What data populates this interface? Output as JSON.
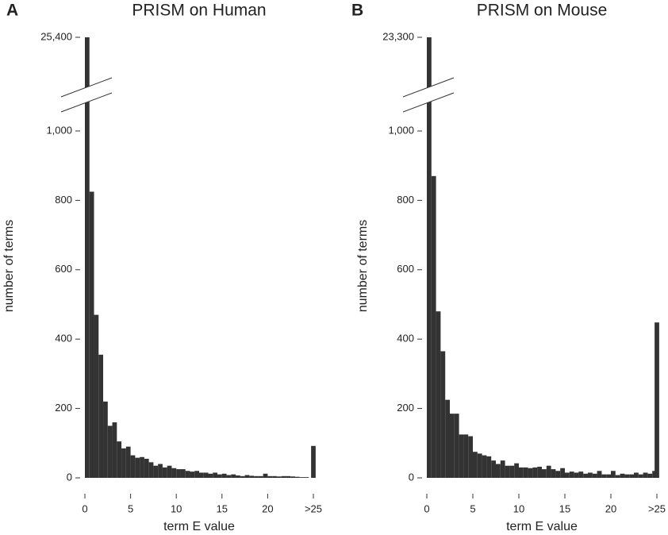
{
  "chart_data": [
    {
      "type": "histogram",
      "panel_label": "A",
      "title": "PRISM on Human",
      "x_label": "term E value",
      "y_label": "number of terms",
      "color": "#333333",
      "bins": [
        0,
        0.5,
        1,
        1.5,
        2,
        2.5,
        3,
        3.5,
        4,
        4.5,
        5,
        5.5,
        6,
        6.5,
        7,
        7.5,
        8,
        8.5,
        9,
        9.5,
        10,
        10.5,
        11,
        11.5,
        12,
        12.5,
        13,
        13.5,
        14,
        14.5,
        15,
        15.5,
        16,
        16.5,
        17,
        17.5,
        18,
        18.5,
        19,
        19.5,
        20,
        20.5,
        21,
        21.5,
        22,
        22.5,
        23,
        23.5,
        24,
        24.5,
        25
      ],
      "values": [
        25400,
        825,
        470,
        355,
        220,
        150,
        160,
        105,
        85,
        90,
        65,
        58,
        60,
        55,
        45,
        35,
        40,
        30,
        35,
        28,
        25,
        25,
        20,
        18,
        20,
        15,
        15,
        12,
        15,
        10,
        12,
        8,
        10,
        7,
        5,
        8,
        6,
        5,
        5,
        12,
        5,
        5,
        4,
        5,
        5,
        4,
        3,
        2,
        2,
        0
      ],
      "overflow": 92,
      "xlim": [
        0,
        25
      ],
      "xticks": [
        0,
        5,
        10,
        15,
        20,
        {
          "value": 25,
          "label": ">25"
        }
      ],
      "ylim": [
        0,
        25400
      ],
      "y_break": 1000,
      "yticks": [
        0,
        200,
        400,
        600,
        800,
        {
          "value": 1000,
          "label": "1,000"
        },
        {
          "value": 25400,
          "label": "25,400"
        }
      ]
    },
    {
      "type": "histogram",
      "panel_label": "B",
      "title": "PRISM on Mouse",
      "x_label": "term E value",
      "y_label": "number of terms",
      "color": "#333333",
      "bins": [
        0,
        0.5,
        1,
        1.5,
        2,
        2.5,
        3,
        3.5,
        4,
        4.5,
        5,
        5.5,
        6,
        6.5,
        7,
        7.5,
        8,
        8.5,
        9,
        9.5,
        10,
        10.5,
        11,
        11.5,
        12,
        12.5,
        13,
        13.5,
        14,
        14.5,
        15,
        15.5,
        16,
        16.5,
        17,
        17.5,
        18,
        18.5,
        19,
        19.5,
        20,
        20.5,
        21,
        21.5,
        22,
        22.5,
        23,
        23.5,
        24,
        24.5,
        25
      ],
      "values": [
        23300,
        870,
        480,
        365,
        225,
        185,
        185,
        125,
        125,
        120,
        75,
        70,
        65,
        62,
        50,
        40,
        50,
        35,
        35,
        42,
        30,
        30,
        28,
        30,
        32,
        25,
        35,
        25,
        20,
        28,
        15,
        18,
        15,
        18,
        12,
        15,
        12,
        20,
        10,
        10,
        20,
        8,
        12,
        10,
        10,
        15,
        10,
        15,
        12,
        20
      ],
      "overflow": 448,
      "xlim": [
        0,
        25
      ],
      "xticks": [
        0,
        5,
        10,
        15,
        20,
        {
          "value": 25,
          "label": ">25"
        }
      ],
      "ylim": [
        0,
        23300
      ],
      "y_break": 1000,
      "yticks": [
        0,
        200,
        400,
        600,
        800,
        {
          "value": 1000,
          "label": "1,000"
        },
        {
          "value": 23300,
          "label": "23,300"
        }
      ]
    }
  ]
}
